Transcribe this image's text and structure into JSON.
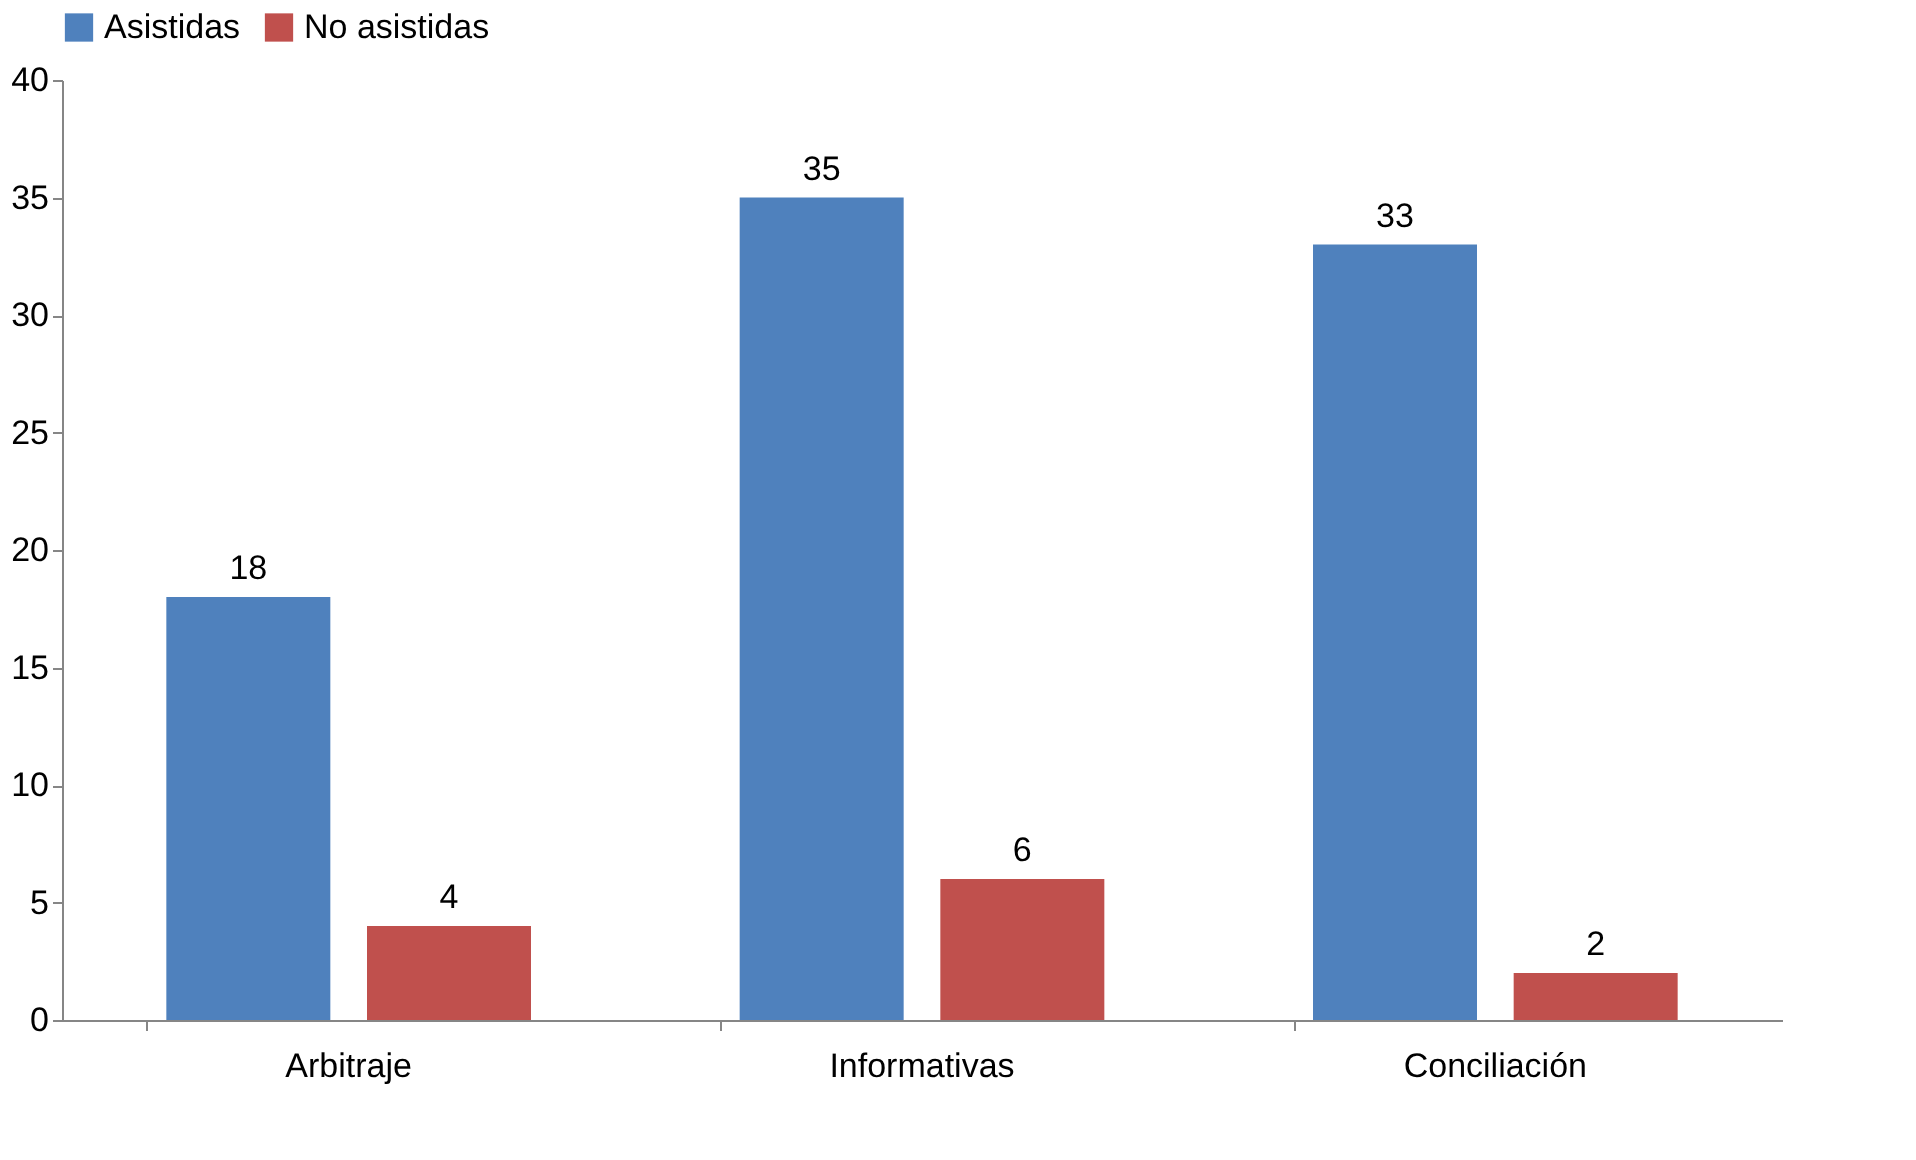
{
  "chart_data": {
    "type": "bar",
    "categories": [
      "Arbitraje",
      "Informativas",
      "Conciliación"
    ],
    "series": [
      {
        "name": "Asistidas",
        "color": "#4f81bd",
        "values": [
          18,
          35,
          33
        ]
      },
      {
        "name": "No asistidas",
        "color": "#c0504d",
        "values": [
          4,
          6,
          2
        ]
      }
    ],
    "ylim": [
      0,
      40
    ],
    "yticks": [
      0,
      5,
      10,
      15,
      20,
      25,
      30,
      35,
      40
    ],
    "grid": false,
    "legend": "top",
    "data_labels": true
  }
}
